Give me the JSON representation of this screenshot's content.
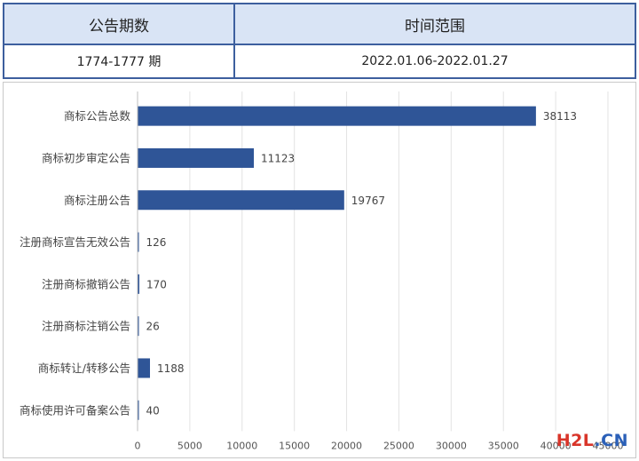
{
  "table": {
    "headers": [
      "公告期数",
      "时间范围"
    ],
    "row": [
      "1774-1777 期",
      "2022.01.06-2022.01.27"
    ]
  },
  "chart_data": {
    "type": "bar",
    "orientation": "horizontal",
    "categories": [
      "商标公告总数",
      "商标初步审定公告",
      "商标注册公告",
      "注册商标宣告无效公告",
      "注册商标撤销公告",
      "注册商标注销公告",
      "商标转让/转移公告",
      "商标使用许可备案公告"
    ],
    "values": [
      38113,
      11123,
      19767,
      126,
      170,
      26,
      1188,
      40
    ],
    "xlim": [
      0,
      45000
    ],
    "x_ticks": [
      0,
      5000,
      10000,
      15000,
      20000,
      25000,
      30000,
      35000,
      40000,
      45000
    ],
    "grid": true,
    "bar_color": "#2f5597",
    "data_labels": true
  },
  "watermark": {
    "text": "H2L",
    "suffix": ".CN"
  }
}
